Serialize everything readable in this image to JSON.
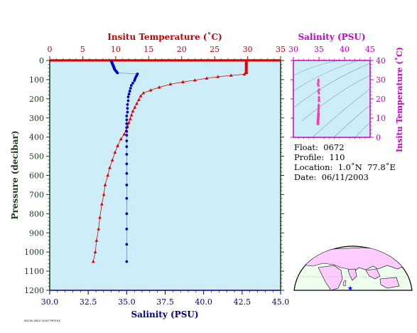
{
  "chart_data": [
    {
      "type": "line",
      "title": "",
      "left_axis": {
        "label": "Pressure (decibar)",
        "range": [
          0,
          1200
        ],
        "inverted": true,
        "ticks": [
          "0",
          "100",
          "200",
          "300",
          "400",
          "500",
          "600",
          "700",
          "800",
          "900",
          "1000",
          "1100",
          "1200"
        ]
      },
      "top_axis": {
        "label": "Insitu Temperature (˚C)",
        "range": [
          0,
          35
        ],
        "ticks": [
          "0",
          "5",
          "10",
          "15",
          "20",
          "25",
          "30",
          "35"
        ]
      },
      "bottom_axis": {
        "label": "Salinity (PSU)",
        "range": [
          30.0,
          45.0
        ],
        "ticks": [
          "30.0",
          "32.5",
          "35.0",
          "37.5",
          "40.0",
          "42.5",
          "45.0"
        ]
      },
      "background_color": "#cdeef8",
      "series": [
        {
          "color": "#e00000",
          "marker": "triangle",
          "axis": "temperature",
          "points": [
            [
              29.8,
              5
            ],
            [
              29.8,
              10
            ],
            [
              29.8,
              15
            ],
            [
              29.8,
              20
            ],
            [
              29.8,
              25
            ],
            [
              29.8,
              30
            ],
            [
              29.8,
              35
            ],
            [
              29.8,
              40
            ],
            [
              29.8,
              45
            ],
            [
              29.8,
              50
            ],
            [
              29.8,
              55
            ],
            [
              29.8,
              60
            ],
            [
              29.8,
              65
            ],
            [
              29.5,
              72
            ],
            [
              27.5,
              78
            ],
            [
              25.5,
              85
            ],
            [
              23.8,
              93
            ],
            [
              22.0,
              103
            ],
            [
              20.2,
              112
            ],
            [
              18.3,
              124
            ],
            [
              16.6,
              140
            ],
            [
              15.3,
              155
            ],
            [
              14.2,
              170
            ],
            [
              13.8,
              185
            ],
            [
              13.5,
              205
            ],
            [
              13.2,
              225
            ],
            [
              12.9,
              245
            ],
            [
              12.6,
              265
            ],
            [
              12.4,
              285
            ],
            [
              12.2,
              305
            ],
            [
              12.0,
              325
            ],
            [
              11.8,
              345
            ],
            [
              11.6,
              365
            ],
            [
              11.3,
              385
            ],
            [
              10.8,
              410
            ],
            [
              10.3,
              445
            ],
            [
              9.9,
              480
            ],
            [
              9.5,
              520
            ],
            [
              9.1,
              560
            ],
            [
              8.8,
              600
            ],
            [
              8.4,
              650
            ],
            [
              8.2,
              700
            ],
            [
              7.9,
              750
            ],
            [
              7.6,
              820
            ],
            [
              7.4,
              880
            ],
            [
              7.1,
              940
            ],
            [
              6.9,
              1000
            ],
            [
              6.6,
              1050
            ]
          ]
        },
        {
          "color": "#0000cc",
          "marker": "circle",
          "axis": "salinity",
          "points": [
            [
              34.0,
              5
            ],
            [
              34.05,
              10
            ],
            [
              34.05,
              15
            ],
            [
              34.1,
              20
            ],
            [
              34.1,
              25
            ],
            [
              34.15,
              30
            ],
            [
              34.15,
              35
            ],
            [
              34.2,
              40
            ],
            [
              34.2,
              45
            ],
            [
              34.25,
              50
            ],
            [
              34.3,
              55
            ],
            [
              34.35,
              60
            ],
            [
              34.4,
              65
            ],
            [
              35.7,
              70
            ],
            [
              35.65,
              78
            ],
            [
              35.6,
              85
            ],
            [
              35.55,
              95
            ],
            [
              35.5,
              105
            ],
            [
              35.4,
              118
            ],
            [
              35.3,
              130
            ],
            [
              35.25,
              145
            ],
            [
              35.2,
              160
            ],
            [
              35.15,
              175
            ],
            [
              35.1,
              190
            ],
            [
              35.1,
              210
            ],
            [
              35.05,
              230
            ],
            [
              35.05,
              250
            ],
            [
              35.05,
              270
            ],
            [
              35.0,
              290
            ],
            [
              35.0,
              310
            ],
            [
              35.0,
              330
            ],
            [
              35.0,
              350
            ],
            [
              35.0,
              370
            ],
            [
              35.0,
              390
            ],
            [
              35.0,
              420
            ],
            [
              35.0,
              450
            ],
            [
              35.0,
              490
            ],
            [
              35.0,
              540
            ],
            [
              35.0,
              590
            ],
            [
              35.0,
              650
            ],
            [
              35.0,
              720
            ],
            [
              35.0,
              800
            ],
            [
              35.0,
              880
            ],
            [
              35.0,
              960
            ],
            [
              35.0,
              1050
            ]
          ]
        }
      ]
    },
    {
      "type": "scatter",
      "x_axis": {
        "label": "Salinity (PSU)",
        "range": [
          30,
          45
        ],
        "ticks": [
          "30",
          "35",
          "40",
          "45"
        ]
      },
      "y_axis": {
        "label": "Insitu Temperature (˚C)",
        "range": [
          0,
          40
        ],
        "ticks": [
          "0",
          "10",
          "20",
          "30",
          "40"
        ]
      },
      "marker_color": "#ff33aa",
      "points": [
        [
          34.9,
          30
        ],
        [
          34.9,
          29
        ],
        [
          34.8,
          28
        ],
        [
          34.9,
          27
        ],
        [
          35.0,
          25
        ],
        [
          34.9,
          24
        ],
        [
          35.0,
          23
        ],
        [
          35.0,
          21
        ],
        [
          35.0,
          20
        ],
        [
          35.0,
          19
        ],
        [
          34.95,
          17
        ],
        [
          34.95,
          16
        ],
        [
          34.95,
          15
        ],
        [
          34.9,
          14
        ],
        [
          34.9,
          13
        ],
        [
          34.9,
          12.5
        ],
        [
          34.9,
          12
        ],
        [
          34.9,
          11.5
        ],
        [
          34.85,
          11
        ],
        [
          34.85,
          10.5
        ],
        [
          34.85,
          10
        ],
        [
          34.85,
          9.5
        ],
        [
          34.8,
          9
        ],
        [
          34.8,
          8.5
        ],
        [
          34.8,
          8
        ],
        [
          34.8,
          7.5
        ],
        [
          34.8,
          7
        ]
      ]
    }
  ],
  "info": {
    "float_label": "Float:",
    "float_value": "0672",
    "profile_label": "Profile:",
    "profile_value": "110",
    "location_label": "Location:",
    "location_value": "1.0˚N  77.8˚E",
    "date_label": "Date:",
    "date_value": "06/11/2003"
  },
  "map": {
    "land_color": "#ffccff",
    "ocean_color": "#eeffee",
    "marker_color": "#0000ff"
  },
  "credit": "INCOIS ARGO FLOAT PROFILE"
}
